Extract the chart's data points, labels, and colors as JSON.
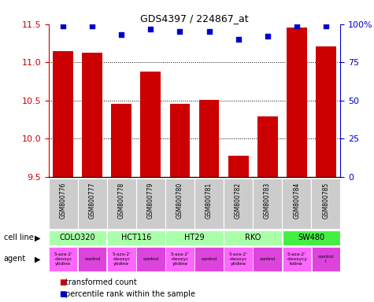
{
  "title": "GDS4397 / 224867_at",
  "samples": [
    "GSM800776",
    "GSM800777",
    "GSM800778",
    "GSM800779",
    "GSM800780",
    "GSM800781",
    "GSM800782",
    "GSM800783",
    "GSM800784",
    "GSM800785"
  ],
  "bar_values": [
    11.15,
    11.13,
    10.46,
    10.88,
    10.46,
    10.51,
    9.77,
    10.29,
    11.46,
    11.21
  ],
  "percentile_values": [
    99,
    99,
    93,
    97,
    95,
    95,
    90,
    92,
    99,
    99
  ],
  "bar_color": "#cc0000",
  "percentile_color": "#0000cc",
  "ylim_left": [
    9.5,
    11.5
  ],
  "ylim_right": [
    0,
    100
  ],
  "yticks_left": [
    9.5,
    10.0,
    10.5,
    11.0,
    11.5
  ],
  "yticks_right": [
    0,
    25,
    50,
    75,
    100
  ],
  "ytick_labels_right": [
    "0",
    "25",
    "50",
    "75",
    "100%"
  ],
  "gridlines": [
    10.0,
    10.5,
    11.0
  ],
  "cell_lines": [
    {
      "name": "COLO320",
      "start": 0,
      "end": 2,
      "color": "#aaffaa"
    },
    {
      "name": "HCT116",
      "start": 2,
      "end": 4,
      "color": "#aaffaa"
    },
    {
      "name": "HT29",
      "start": 4,
      "end": 6,
      "color": "#aaffaa"
    },
    {
      "name": "RKO",
      "start": 6,
      "end": 8,
      "color": "#aaffaa"
    },
    {
      "name": "SW480",
      "start": 8,
      "end": 10,
      "color": "#44ee44"
    }
  ],
  "agents": [
    {
      "name": "5-aza-2'\n-deoxyc\nytidine",
      "start": 0,
      "end": 1,
      "color": "#ff66ff"
    },
    {
      "name": "control",
      "start": 1,
      "end": 2,
      "color": "#dd44dd"
    },
    {
      "name": "5-aza-2'\n-deoxyc\nytidine",
      "start": 2,
      "end": 3,
      "color": "#ff66ff"
    },
    {
      "name": "control",
      "start": 3,
      "end": 4,
      "color": "#dd44dd"
    },
    {
      "name": "5-aza-2'\n-deoxyc\nytidine",
      "start": 4,
      "end": 5,
      "color": "#ff66ff"
    },
    {
      "name": "control",
      "start": 5,
      "end": 6,
      "color": "#dd44dd"
    },
    {
      "name": "5-aza-2'\n-deoxyc\nytidine",
      "start": 6,
      "end": 7,
      "color": "#ff66ff"
    },
    {
      "name": "control",
      "start": 7,
      "end": 8,
      "color": "#dd44dd"
    },
    {
      "name": "5-aza-2'\n-deoxycy\ntidine",
      "start": 8,
      "end": 9,
      "color": "#ff66ff"
    },
    {
      "name": "control\nl",
      "start": 9,
      "end": 10,
      "color": "#dd44dd"
    }
  ],
  "legend_items": [
    {
      "label": "transformed count",
      "color": "#cc0000"
    },
    {
      "label": "percentile rank within the sample",
      "color": "#0000cc"
    }
  ],
  "xticklabel_bg": "#cccccc",
  "cell_line_label": "cell line",
  "agent_label": "agent"
}
